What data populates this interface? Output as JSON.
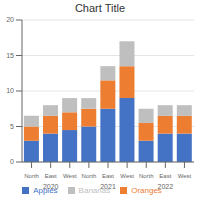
{
  "chart_data": {
    "type": "bar",
    "title": "Chart Title",
    "stacked": true,
    "grid": true,
    "legend": "bottom",
    "categories": [
      "North",
      "East",
      "West",
      "North",
      "East",
      "West",
      "North",
      "East",
      "West"
    ],
    "group_labels": [
      "2020",
      "2021",
      "2022"
    ],
    "series": [
      {
        "name": "Apples",
        "color": "#4472C4",
        "values": [
          3,
          4,
          4.5,
          5,
          7.5,
          9,
          3,
          4,
          4
        ]
      },
      {
        "name": "Oranges",
        "color": "#ED7D31",
        "values": [
          2,
          2.5,
          2.5,
          2.5,
          4,
          4.5,
          2.5,
          2.5,
          2.5
        ]
      },
      {
        "name": "Bananas",
        "color": "#BFBFBF",
        "values": [
          1.5,
          1.5,
          2,
          1.5,
          2,
          3.5,
          2,
          1.5,
          1.5
        ]
      }
    ],
    "ylim": [
      0,
      20
    ],
    "yticks": [
      0,
      5,
      10,
      15,
      20
    ]
  }
}
